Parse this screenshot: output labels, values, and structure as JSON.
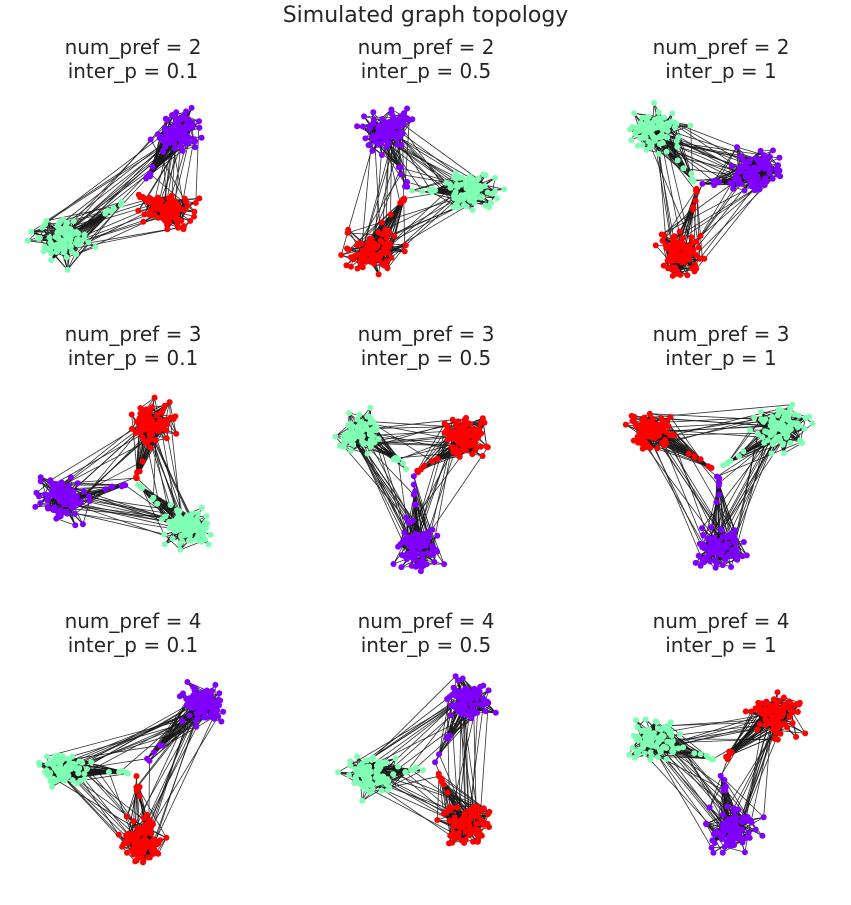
{
  "figure": {
    "title": "Simulated graph topology"
  },
  "colors": {
    "purple": "#8000ff",
    "mint": "#80ffb4",
    "red": "#ff0000",
    "edge": "#1a1a1a"
  },
  "panels": [
    {
      "num_pref_label": "num_pref = 2",
      "inter_p_label": "inter_p = 0.1"
    },
    {
      "num_pref_label": "num_pref = 2",
      "inter_p_label": "inter_p = 0.5"
    },
    {
      "num_pref_label": "num_pref = 2",
      "inter_p_label": "inter_p = 1"
    },
    {
      "num_pref_label": "num_pref = 3",
      "inter_p_label": "inter_p = 0.1"
    },
    {
      "num_pref_label": "num_pref = 3",
      "inter_p_label": "inter_p = 0.5"
    },
    {
      "num_pref_label": "num_pref = 3",
      "inter_p_label": "inter_p = 1"
    },
    {
      "num_pref_label": "num_pref = 4",
      "inter_p_label": "inter_p = 0.1"
    },
    {
      "num_pref_label": "num_pref = 4",
      "inter_p_label": "inter_p = 0.5"
    },
    {
      "num_pref_label": "num_pref = 4",
      "inter_p_label": "inter_p = 1"
    }
  ]
}
